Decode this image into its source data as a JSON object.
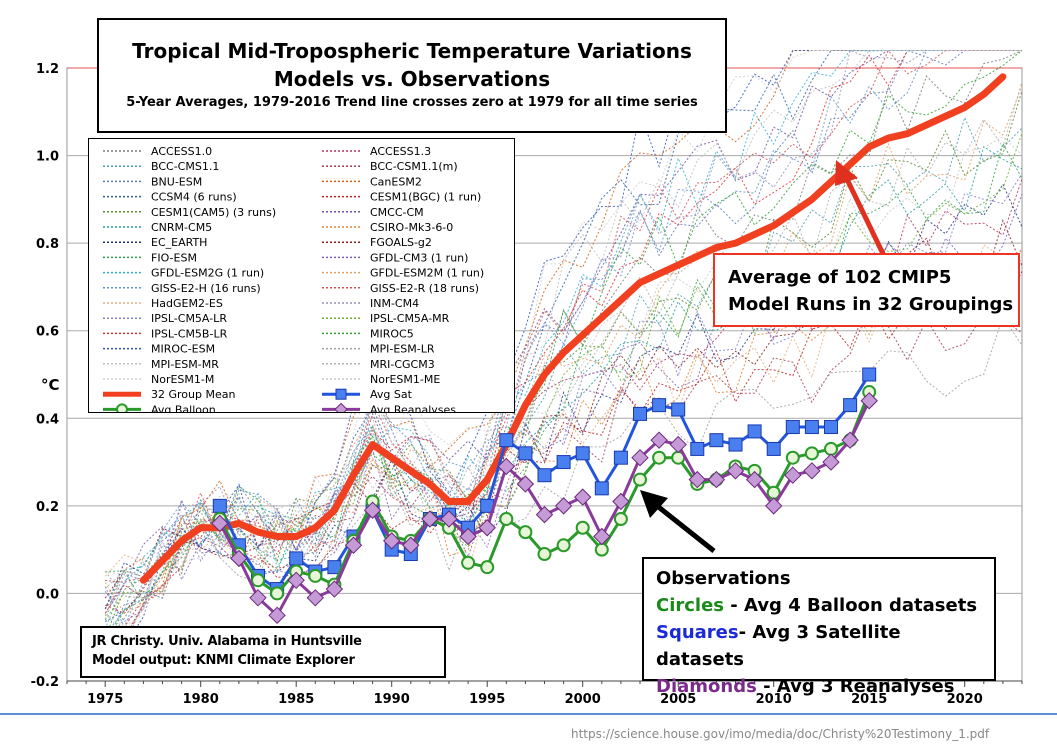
{
  "chart_data": {
    "type": "line",
    "title": "Tropical Mid-Tropospheric Temperature Variations",
    "title_line2": "Models vs. Observations",
    "subtitle": "5-Year Averages, 1979-2016 Trend line crosses zero at 1979 for all time series",
    "ylabel": "°C",
    "xlim": [
      1973,
      2023
    ],
    "ylim": [
      -0.2,
      1.2
    ],
    "x_ticks": [
      1975,
      1980,
      1985,
      1990,
      1995,
      2000,
      2005,
      2010,
      2015,
      2020
    ],
    "y_ticks": [
      -0.2,
      0.0,
      0.2,
      0.4,
      0.6,
      0.8,
      1.0,
      1.2
    ],
    "y_tick_labels": [
      "-0.2",
      "0.0",
      "0.2",
      "0.4",
      "0.6",
      "0.8",
      "1.0",
      "1.2"
    ],
    "grid": true,
    "model_legend": [
      {
        "name": "ACCESS1.0",
        "color": "#7a7a7a"
      },
      {
        "name": "ACCESS1.3",
        "color": "#b03060"
      },
      {
        "name": "BCC-CMS1.1",
        "color": "#4a9fb0"
      },
      {
        "name": "BCC-CSM1.1(m)",
        "color": "#a04050"
      },
      {
        "name": "BNU-ESM",
        "color": "#5a7ab8"
      },
      {
        "name": "CanESM2",
        "color": "#d06010"
      },
      {
        "name": "CCSM4 (6 runs)",
        "color": "#3060a0"
      },
      {
        "name": "CESM1(BGC) (1 run)",
        "color": "#c02020"
      },
      {
        "name": "CESM1(CAM5) (3 runs)",
        "color": "#5a8a2a"
      },
      {
        "name": "CMCC-CM",
        "color": "#7050a0"
      },
      {
        "name": "CNRM-CM5",
        "color": "#20a0a0"
      },
      {
        "name": "CSIRO-Mk3-6-0",
        "color": "#e08030"
      },
      {
        "name": "EC_EARTH",
        "color": "#203080"
      },
      {
        "name": "FGOALS-g2",
        "color": "#802020"
      },
      {
        "name": "FIO-ESM",
        "color": "#30a050"
      },
      {
        "name": "GFDL-CM3 (1 run)",
        "color": "#8060b0"
      },
      {
        "name": "GFDL-ESM2G (1 run)",
        "color": "#30b0d0"
      },
      {
        "name": "GFDL-ESM2M (1 run)",
        "color": "#e0a060"
      },
      {
        "name": "GISS-E2-H (16 runs)",
        "color": "#6090d0"
      },
      {
        "name": "GISS-E2-R (18 runs)",
        "color": "#d05050"
      },
      {
        "name": "HadGEM2-ES",
        "color": "#e0b080"
      },
      {
        "name": "INM-CM4",
        "color": "#9090c0"
      },
      {
        "name": "IPSL-CM5A-LR",
        "color": "#8080d0"
      },
      {
        "name": "IPSL-CM5A-MR",
        "color": "#70b030"
      },
      {
        "name": "IPSL-CM5B-LR",
        "color": "#e03030"
      },
      {
        "name": "MIROC5",
        "color": "#30a030"
      },
      {
        "name": "MIROC-ESM",
        "color": "#3050c0"
      },
      {
        "name": "MPI-ESM-LR",
        "color": "#a0a0a0"
      },
      {
        "name": "MPI-ESM-MR",
        "color": "#c0c0c0"
      },
      {
        "name": "MRI-CGCM3",
        "color": "#b0b0b0"
      },
      {
        "name": "NorESM1-M",
        "color": "#d0d0d0"
      },
      {
        "name": "NorESM1-ME",
        "color": "#c8c8c8"
      }
    ],
    "series": [
      {
        "name": "32 Group Mean",
        "color": "#f04020",
        "x": [
          1977,
          1979,
          1980,
          1981,
          1982,
          1983,
          1984,
          1985,
          1986,
          1987,
          1988,
          1989,
          1990,
          1991,
          1992,
          1993,
          1994,
          1995,
          1996,
          1997,
          1998,
          1999,
          2000,
          2001,
          2002,
          2003,
          2004,
          2005,
          2006,
          2007,
          2008,
          2009,
          2010,
          2011,
          2012,
          2013,
          2014,
          2015,
          2016,
          2017,
          2018,
          2019,
          2020,
          2021,
          2022
        ],
        "values": [
          0.03,
          0.12,
          0.15,
          0.15,
          0.16,
          0.14,
          0.13,
          0.13,
          0.15,
          0.19,
          0.27,
          0.34,
          0.31,
          0.28,
          0.25,
          0.21,
          0.21,
          0.26,
          0.34,
          0.43,
          0.5,
          0.55,
          0.59,
          0.63,
          0.67,
          0.71,
          0.73,
          0.75,
          0.77,
          0.79,
          0.8,
          0.82,
          0.84,
          0.87,
          0.9,
          0.94,
          0.98,
          1.02,
          1.04,
          1.05,
          1.07,
          1.09,
          1.11,
          1.14,
          1.18
        ]
      },
      {
        "name": "Avg Sat",
        "color": "#2255dd",
        "marker": "square",
        "x": [
          1981,
          1982,
          1983,
          1984,
          1985,
          1986,
          1987,
          1988,
          1989,
          1990,
          1991,
          1992,
          1993,
          1994,
          1995,
          1996,
          1997,
          1998,
          1999,
          2000,
          2001,
          2002,
          2003,
          2004,
          2005,
          2006,
          2007,
          2008,
          2009,
          2010,
          2011,
          2012,
          2013,
          2014,
          2015
        ],
        "values": [
          0.2,
          0.11,
          0.04,
          0.01,
          0.08,
          0.05,
          0.06,
          0.13,
          0.19,
          0.1,
          0.09,
          0.17,
          0.18,
          0.15,
          0.2,
          0.35,
          0.32,
          0.27,
          0.3,
          0.32,
          0.24,
          0.31,
          0.41,
          0.43,
          0.42,
          0.33,
          0.35,
          0.34,
          0.37,
          0.33,
          0.38,
          0.38,
          0.38,
          0.43,
          0.5
        ]
      },
      {
        "name": "Avg Balloon",
        "color": "#2a9a2a",
        "marker": "circle",
        "x": [
          1981,
          1982,
          1983,
          1984,
          1985,
          1986,
          1987,
          1988,
          1989,
          1990,
          1991,
          1992,
          1993,
          1994,
          1995,
          1996,
          1997,
          1998,
          1999,
          2000,
          2001,
          2002,
          2003,
          2004,
          2005,
          2006,
          2007,
          2008,
          2009,
          2010,
          2011,
          2012,
          2013,
          2014,
          2015
        ],
        "values": [
          0.17,
          0.09,
          0.03,
          0.0,
          0.05,
          0.04,
          0.02,
          0.12,
          0.21,
          0.13,
          0.12,
          0.17,
          0.15,
          0.07,
          0.06,
          0.17,
          0.14,
          0.09,
          0.11,
          0.15,
          0.1,
          0.17,
          0.26,
          0.31,
          0.31,
          0.25,
          0.26,
          0.29,
          0.28,
          0.23,
          0.31,
          0.32,
          0.33,
          0.35,
          0.46
        ]
      },
      {
        "name": "Avg Reanalyses",
        "color": "#8a3a9a",
        "marker": "diamond",
        "x": [
          1981,
          1982,
          1983,
          1984,
          1985,
          1986,
          1987,
          1988,
          1989,
          1990,
          1991,
          1992,
          1993,
          1994,
          1995,
          1996,
          1997,
          1998,
          1999,
          2000,
          2001,
          2002,
          2003,
          2004,
          2005,
          2006,
          2007,
          2008,
          2009,
          2010,
          2011,
          2012,
          2013,
          2014,
          2015
        ],
        "values": [
          0.16,
          0.08,
          -0.01,
          -0.05,
          0.03,
          -0.01,
          0.01,
          0.11,
          0.19,
          0.12,
          0.11,
          0.17,
          0.17,
          0.13,
          0.15,
          0.29,
          0.25,
          0.18,
          0.2,
          0.22,
          0.13,
          0.21,
          0.31,
          0.35,
          0.34,
          0.26,
          0.26,
          0.28,
          0.26,
          0.2,
          0.27,
          0.28,
          0.3,
          0.35,
          0.44
        ]
      }
    ]
  },
  "callout": {
    "line1": "Average of 102 CMIP5",
    "line2": "Model Runs in 32 Groupings"
  },
  "observations": {
    "heading": "Observations",
    "circles_word": "Circles",
    "circles_rest": " - Avg 4 Balloon datasets",
    "squares_word": "Squares",
    "squares_rest": "- Avg 3 Satellite datasets",
    "diamonds_word": "Diamonds",
    "diamonds_rest": " - Avg 3 Reanalyses"
  },
  "credit": {
    "line1": "JR Christy. Univ. Alabama in Huntsville",
    "line2": "Model output: KNMI Climate Explorer"
  },
  "source": "https://science.house.gov/imo/media/doc/Christy%20Testimony_1.pdf"
}
